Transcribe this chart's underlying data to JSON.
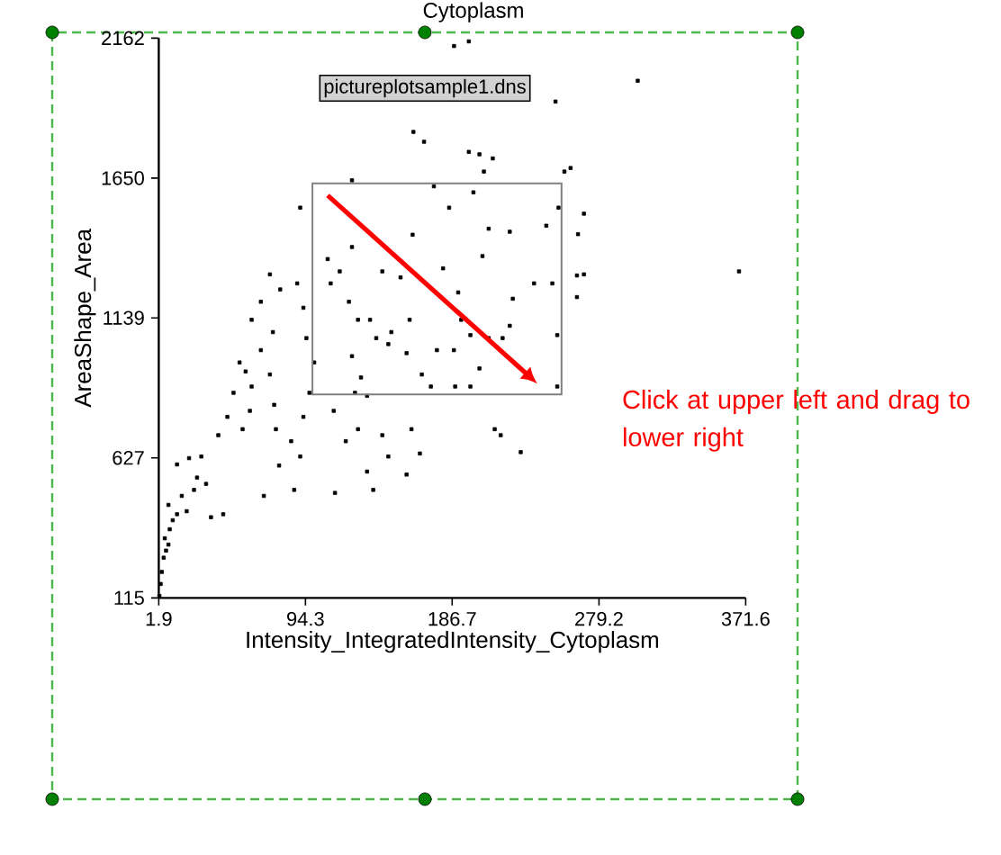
{
  "chart_data": {
    "type": "scatter",
    "title": "Cytoplasm",
    "xlabel": "Intensity_IntegratedIntensity_Cytoplasm",
    "ylabel": "AreaShape_Area",
    "annotations": [
      "pictureplotsample1.dns",
      "Click at upper left and drag to lower right"
    ],
    "xlim": [
      1.9,
      371.6
    ],
    "ylim": [
      115,
      2162
    ],
    "xticks": [
      1.9,
      94.3,
      186.7,
      279.2,
      371.6
    ],
    "yticks": [
      115,
      627,
      1139,
      1650,
      2162
    ],
    "marker": "square",
    "series": [
      {
        "color": "#000000",
        "x": [
          187.9,
          197.2,
          303.6,
          251.8,
          162.3,
          169.0,
          197.2,
          203.9,
          212.3,
          206.7,
          257.4,
          266.0,
          265.3,
          265.3,
          367.4,
          2.3,
          3.1,
          3.8,
          5.0,
          6.5,
          8.0,
          5.7,
          8.8,
          10.7,
          13.4,
          8.0,
          16.4,
          19.5,
          13.4,
          21.0,
          26.0,
          28.7,
          31.7,
          34.8,
          42.5,
          24.1,
          39.4,
          45.1,
          49.0,
          52.8,
          56.6,
          60.4,
          54.7,
          59.3,
          60.4,
          66.2,
          71.9,
          78.4,
          89.1,
          93.0,
          66.2,
          73.8,
          71.9,
          74.6,
          75.7,
          77.7,
          68.1,
          85.3,
          87.2,
          91.0,
          93.0,
          96.8,
          99.8,
          94.9,
          91.0,
          108.3,
          110.2,
          115.9,
          121.7,
          127.4,
          129.3,
          123.6,
          112.1,
          112.9,
          119.7,
          127.4,
          133.1,
          137.0,
          142.7,
          146.5,
          148.4,
          154.2,
          158.0,
          159.9,
          161.1,
          166.4,
          167.6,
          173.3,
          177.1,
          175.2,
          181.0,
          184.8,
          187.8,
          190.5,
          192.4,
          198.2,
          200.1,
          203.9,
          205.8,
          209.7,
          213.5,
          217.3,
          223.0,
          223.0,
          224.9,
          229.9,
          238.3,
          246.0,
          249.8,
          252.9,
          252.9,
          253.7,
          261.3,
          269.7,
          269.7,
          188.6,
          198.2,
          209.7,
          218.5,
          158.0,
          135.0,
          138.9,
          146.5,
          125.5,
          133.1,
          123.6,
          161.8,
          142.7,
          123.6
        ],
        "values": [
          2133,
          2150,
          2006,
          1930,
          1819,
          1783,
          1746,
          1737,
          1722,
          1674,
          1674,
          1445,
          1294,
          1215,
          1309,
          122,
          166,
          210,
          262,
          288,
          310,
          333,
          366,
          399,
          421,
          455,
          488,
          432,
          603,
          626,
          555,
          632,
          532,
          410,
          421,
          510,
          710,
          777,
          865,
          976,
          943,
          888,
          732,
          799,
          1132,
          1198,
          1298,
          1243,
          1265,
          1176,
          1021,
          1087,
          932,
          821,
          732,
          599,
          488,
          688,
          510,
          632,
          777,
          865,
          976,
          1065,
          1542,
          1354,
          1265,
          1309,
          1198,
          1132,
          921,
          999,
          799,
          499,
          688,
          732,
          577,
          510,
          710,
          632,
          1087,
          1287,
          1010,
          1132,
          732,
          643,
          932,
          888,
          1021,
          1620,
          1320,
          1542,
          1021,
          1232,
          1132,
          1076,
          1598,
          954,
          1365,
          1465,
          732,
          710,
          1454,
          1110,
          1209,
          648,
          1265,
          1476,
          1265,
          1076,
          888,
          1542,
          1687,
          1520,
          1298,
          888,
          888,
          1065,
          1065,
          566,
          1132,
          1065,
          1043,
          865,
          854,
          1642,
          1443,
          1309,
          1398
        ]
      }
    ]
  }
}
